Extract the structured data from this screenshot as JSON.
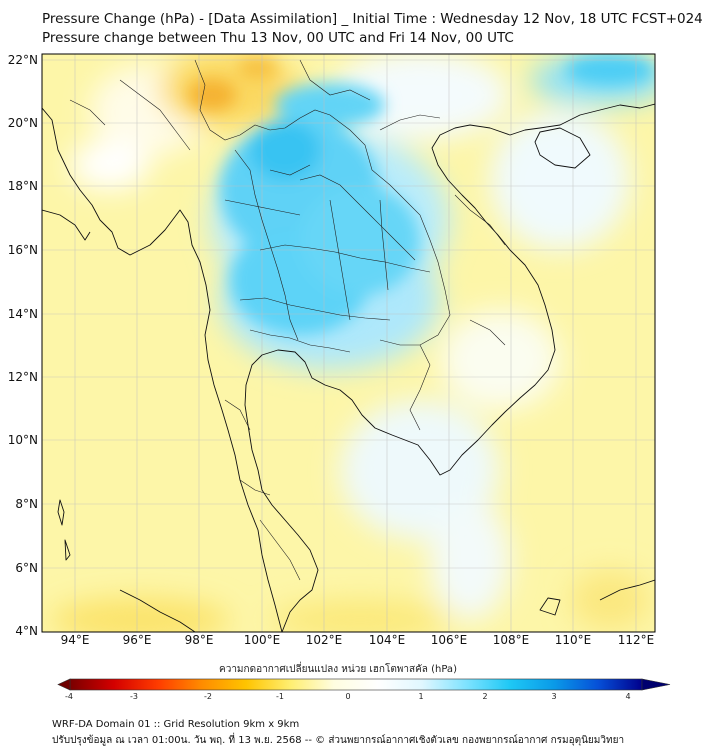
{
  "header": {
    "title_line1": "Pressure Change (hPa) - [Data Assimilation] _ Initial Time : Wednesday 12 Nov, 18 UTC FCST+024",
    "title_line2": "Pressure change between Thu 13 Nov, 00 UTC and Fri 14 Nov, 00 UTC"
  },
  "map": {
    "lat_labels": [
      "22°N",
      "20°N",
      "18°N",
      "16°N",
      "14°N",
      "12°N",
      "10°N",
      "8°N",
      "6°N",
      "4°N"
    ],
    "lon_labels": [
      "94°E",
      "96°E",
      "98°E",
      "100°E",
      "102°E",
      "104°E",
      "106°E",
      "108°E",
      "110°E",
      "112°E"
    ],
    "background_color": "#fdf6a8",
    "land_border_color": "#111111"
  },
  "colorbar": {
    "label": "ความกดอากาศเปลี่ยนแปลง หน่วย เฮกโตพาสคัล (hPa)",
    "ticks": [
      "-4",
      "-3",
      "-2",
      "-1",
      "0",
      "1",
      "2",
      "3",
      "4"
    ],
    "range": [
      -4,
      4
    ],
    "colors": [
      "#7a0000",
      "#d40000",
      "#ff3c00",
      "#ff8c00",
      "#ffc400",
      "#ffee70",
      "#fffde0",
      "#ffffff",
      "#e0f7ff",
      "#7fe3ff",
      "#1ec8f5",
      "#0a9ae8",
      "#0650d8",
      "#00008c"
    ]
  },
  "footer": {
    "line1": "WRF-DA Domain 01 :: Grid Resolution 9km x 9km",
    "line2": "ปรับปรุงข้อมูล ณ เวลา 01:00น. วัน พฤ. ที่ 13 พ.ย. 2568 -- © ส่วนพยากรณ์อากาศเชิงตัวเลข กองพยากรณ์อากาศ กรมอุตุนิยมวิทยา"
  }
}
